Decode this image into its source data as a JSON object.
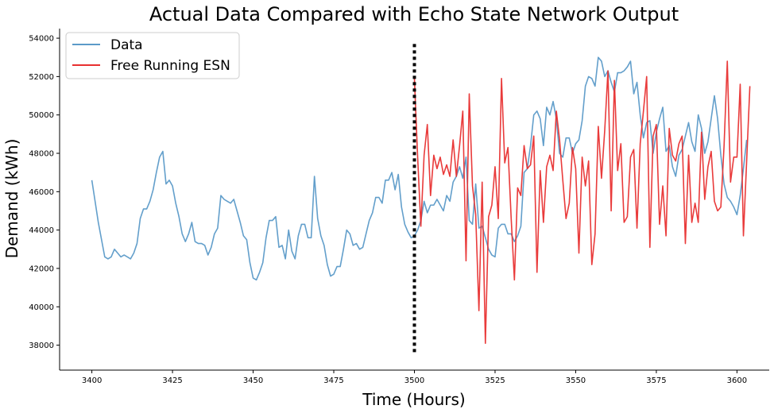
{
  "chart_data": {
    "type": "line",
    "title": "Actual Data Compared with Echo State Network Output",
    "xlabel": "Time (Hours)",
    "ylabel": "Demand (kWh)",
    "xlim": [
      3390,
      3610
    ],
    "ylim": [
      36700,
      54500
    ],
    "xticks": [
      3400,
      3425,
      3450,
      3475,
      3500,
      3525,
      3550,
      3575,
      3600
    ],
    "yticks": [
      38000,
      40000,
      42000,
      44000,
      46000,
      48000,
      50000,
      52000,
      54000
    ],
    "grid": false,
    "legend_position": "top-left",
    "divider": {
      "x": 3500,
      "y_range": [
        37500,
        53700
      ],
      "style": "dotted",
      "color": "#000000"
    },
    "series": [
      {
        "name": "Data",
        "color": "#5b9ac8",
        "x_start": 3400,
        "values": [
          46600,
          45500,
          44400,
          43500,
          42600,
          42500,
          42600,
          43000,
          42800,
          42600,
          42700,
          42600,
          42500,
          42800,
          43300,
          44600,
          45100,
          45100,
          45500,
          46100,
          47000,
          47800,
          48100,
          46400,
          46600,
          46300,
          45400,
          44700,
          43800,
          43400,
          43800,
          44400,
          43400,
          43300,
          43300,
          43200,
          42700,
          43100,
          43800,
          44100,
          45800,
          45600,
          45500,
          45400,
          45600,
          45000,
          44400,
          43700,
          43500,
          42300,
          41500,
          41400,
          41800,
          42300,
          43600,
          44500,
          44500,
          44700,
          43100,
          43200,
          42500,
          44000,
          42900,
          42500,
          43700,
          44300,
          44300,
          43600,
          43600,
          46800,
          44600,
          43700,
          43200,
          42200,
          41600,
          41700,
          42100,
          42100,
          43000,
          44000,
          43800,
          43200,
          43300,
          43000,
          43100,
          43800,
          44500,
          44900,
          45700,
          45700,
          45400,
          46600,
          46600,
          47000,
          46100,
          46900,
          45200,
          44300,
          43900,
          43600,
          43700,
          44000,
          44500,
          45500,
          44900,
          45300,
          45300,
          45600,
          45300,
          45000,
          45800,
          45500,
          46500,
          46800,
          47300,
          46700,
          47800,
          44500,
          44300,
          46400,
          44100,
          44200,
          43600,
          43000,
          42700,
          42600,
          44100,
          44300,
          44300,
          43800,
          43800,
          43400,
          43700,
          44200,
          47000,
          47200,
          48400,
          50000,
          50200,
          49800,
          48400,
          50400,
          50000,
          50700,
          49800,
          48000,
          47800,
          48800,
          48800,
          48000,
          48500,
          48700,
          49700,
          51500,
          52000,
          51900,
          51500,
          53000,
          52800,
          52000,
          52300,
          51700,
          51200,
          52200,
          52200,
          52300,
          52500,
          52800,
          51100,
          51700,
          50000,
          48800,
          49600,
          49700,
          48000,
          49100,
          49800,
          50400,
          48100,
          48400,
          47300,
          46800,
          47900,
          48200,
          48900,
          49600,
          48600,
          48100,
          50000,
          49300,
          48000,
          48600,
          49800,
          51000,
          49800,
          47900,
          46400,
          45700,
          45500,
          45200,
          44800,
          45800,
          47200,
          48700
        ]
      },
      {
        "name": "Free Running ESN",
        "color": "#e83030",
        "x_start": 3500,
        "values": [
          51900,
          47800,
          44200,
          47900,
          49500,
          45800,
          47900,
          47200,
          47800,
          46900,
          47400,
          46800,
          48700,
          46800,
          48400,
          50200,
          42400,
          51100,
          46300,
          44800,
          39800,
          46500,
          38100,
          44700,
          45300,
          47300,
          44600,
          51900,
          47500,
          48300,
          44600,
          41400,
          46200,
          45800,
          48400,
          47200,
          47400,
          48900,
          41800,
          47100,
          44400,
          47300,
          47900,
          47100,
          50200,
          48700,
          46600,
          44600,
          45400,
          48300,
          47200,
          42800,
          47800,
          46300,
          47600,
          42200,
          43800,
          49400,
          46700,
          49200,
          52300,
          45000,
          51800,
          47100,
          48500,
          44400,
          44700,
          47800,
          48200,
          44100,
          48500,
          50200,
          52000,
          43100,
          48900,
          49500,
          44300,
          46300,
          43700,
          49300,
          47900,
          47600,
          48500,
          48900,
          43300,
          47900,
          44400,
          45400,
          44400,
          49100,
          45600,
          47300,
          48100,
          45500,
          45000,
          45200,
          48400,
          52800,
          46500,
          47800,
          47800,
          51600,
          43700,
          47600,
          51500
        ]
      }
    ]
  }
}
